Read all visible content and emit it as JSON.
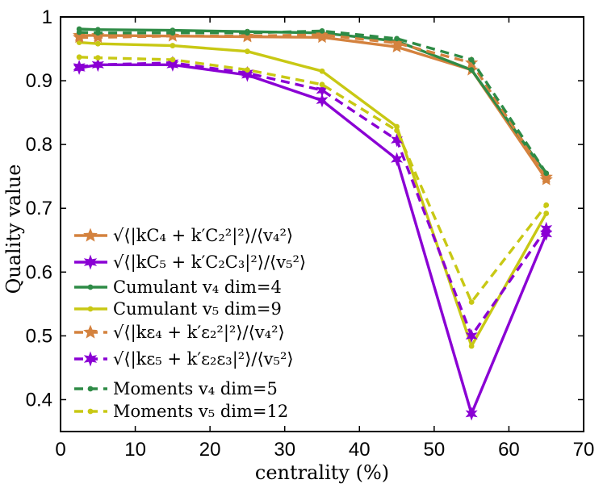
{
  "chart_data": {
    "type": "line",
    "title": "",
    "xlabel": "centrality (%)",
    "ylabel": "Quality value",
    "xlim": [
      0,
      70
    ],
    "ylim": [
      0.35,
      1.0
    ],
    "xticks": [
      0,
      10,
      20,
      30,
      40,
      50,
      60,
      70
    ],
    "yticks": [
      0.4,
      0.5,
      0.6,
      0.7,
      0.8,
      0.9,
      1.0
    ],
    "xtick_labels": [
      "0",
      "10",
      "20",
      "30",
      "40",
      "50",
      "60",
      "70"
    ],
    "ytick_labels": [
      "0.4",
      "0.5",
      "0.6",
      "0.7",
      "0.8",
      "0.9",
      "1"
    ],
    "grid": false,
    "legend_position": "bottom-left",
    "series": [
      {
        "name": "√⟨|kC₄ + k′C₂²|²⟩/⟨v₄²⟩",
        "color": "#d4823e",
        "dash": false,
        "marker": "star",
        "x": [
          2.5,
          5,
          15,
          25,
          35,
          45,
          55,
          65
        ],
        "y": [
          0.971,
          0.971,
          0.97,
          0.969,
          0.968,
          0.953,
          0.917,
          0.745
        ]
      },
      {
        "name": "√⟨|kC₅ + k′C₂C₃|²⟩/⟨v₅²⟩",
        "color": "#8a00d4",
        "dash": false,
        "marker": "star",
        "x": [
          2.5,
          5,
          15,
          25,
          35,
          45,
          55,
          65
        ],
        "y": [
          0.92,
          0.925,
          0.925,
          0.909,
          0.869,
          0.777,
          0.378,
          0.66
        ]
      },
      {
        "name": "Cumulant v₄ dim=4",
        "color": "#2e8b46",
        "dash": false,
        "marker": "dot",
        "x": [
          2.5,
          5,
          15,
          25,
          35,
          45,
          55,
          65
        ],
        "y": [
          0.981,
          0.98,
          0.979,
          0.977,
          0.975,
          0.962,
          0.917,
          0.754
        ]
      },
      {
        "name": "Cumulant v₅ dim=9",
        "color": "#c8c814",
        "dash": false,
        "marker": "dot",
        "x": [
          2.5,
          5,
          15,
          25,
          35,
          45,
          55,
          65
        ],
        "y": [
          0.96,
          0.958,
          0.955,
          0.946,
          0.915,
          0.828,
          0.484,
          0.692
        ]
      },
      {
        "name": "√⟨|kε₄ + k′ε₂²|²⟩/⟨v₄²⟩",
        "color": "#d4823e",
        "dash": true,
        "marker": "star",
        "x": [
          2.5,
          5,
          15,
          25,
          35,
          45,
          55,
          65
        ],
        "y": [
          0.968,
          0.968,
          0.97,
          0.97,
          0.972,
          0.959,
          0.928,
          0.749
        ]
      },
      {
        "name": "√⟨|kε₅ + k′ε₂ε₃|²⟩/⟨v₅²⟩",
        "color": "#8a00d4",
        "dash": true,
        "marker": "star",
        "x": [
          2.5,
          5,
          15,
          25,
          35,
          45,
          55,
          65
        ],
        "y": [
          0.922,
          0.925,
          0.928,
          0.912,
          0.885,
          0.807,
          0.5,
          0.668
        ]
      },
      {
        "name": "Moments v₄ dim=5",
        "color": "#2e8b46",
        "dash": true,
        "marker": "dot",
        "x": [
          2.5,
          5,
          15,
          25,
          35,
          45,
          55,
          65
        ],
        "y": [
          0.976,
          0.975,
          0.975,
          0.975,
          0.978,
          0.966,
          0.933,
          0.755
        ]
      },
      {
        "name": "Moments v₅ dim=12",
        "color": "#c8c814",
        "dash": true,
        "marker": "dot",
        "x": [
          2.5,
          5,
          15,
          25,
          35,
          45,
          55,
          65
        ],
        "y": [
          0.937,
          0.936,
          0.933,
          0.917,
          0.894,
          0.822,
          0.553,
          0.705
        ]
      }
    ]
  }
}
